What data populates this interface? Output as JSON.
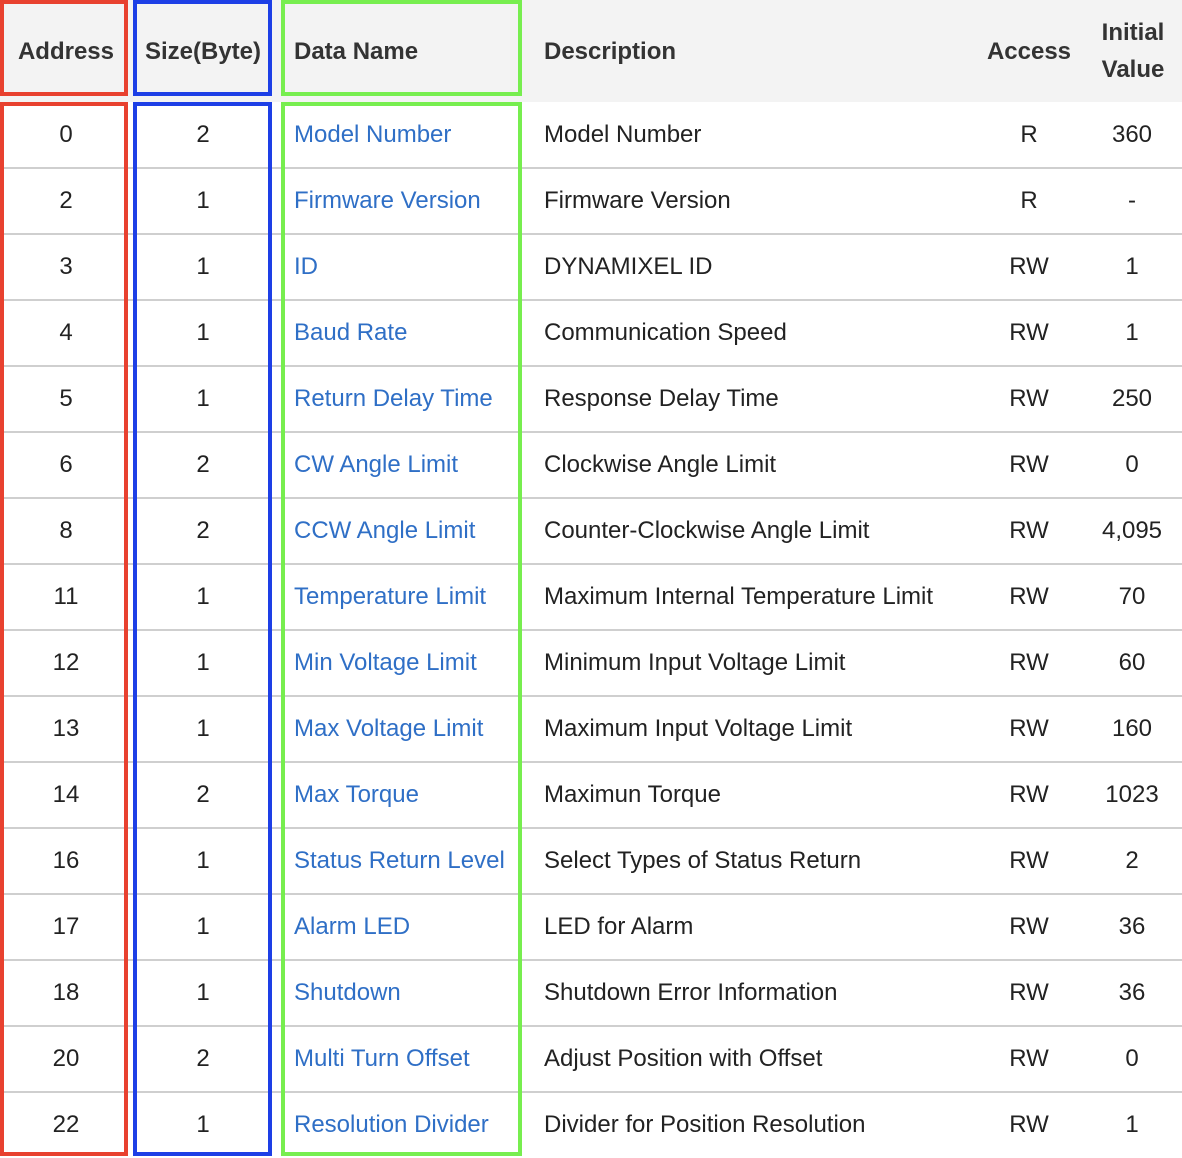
{
  "table": {
    "headers": [
      {
        "key": "address",
        "label": "Address"
      },
      {
        "key": "size",
        "label": "Size(Byte)"
      },
      {
        "key": "data_name",
        "label": "Data Name"
      },
      {
        "key": "description",
        "label": "Description"
      },
      {
        "key": "access",
        "label": "Access"
      },
      {
        "key": "initial_value",
        "label": "Initial Value"
      }
    ],
    "rows": [
      {
        "address": "0",
        "size": "2",
        "data_name": "Model Number",
        "description": "Model Number",
        "access": "R",
        "initial_value": "360"
      },
      {
        "address": "2",
        "size": "1",
        "data_name": "Firmware Version",
        "description": "Firmware Version",
        "access": "R",
        "initial_value": "-"
      },
      {
        "address": "3",
        "size": "1",
        "data_name": "ID",
        "description": "DYNAMIXEL ID",
        "access": "RW",
        "initial_value": "1"
      },
      {
        "address": "4",
        "size": "1",
        "data_name": "Baud Rate",
        "description": "Communication Speed",
        "access": "RW",
        "initial_value": "1"
      },
      {
        "address": "5",
        "size": "1",
        "data_name": "Return Delay Time",
        "description": "Response Delay Time",
        "access": "RW",
        "initial_value": "250"
      },
      {
        "address": "6",
        "size": "2",
        "data_name": "CW Angle Limit",
        "description": "Clockwise Angle Limit",
        "access": "RW",
        "initial_value": "0"
      },
      {
        "address": "8",
        "size": "2",
        "data_name": "CCW Angle Limit",
        "description": "Counter-Clockwise Angle Limit",
        "access": "RW",
        "initial_value": "4,095"
      },
      {
        "address": "11",
        "size": "1",
        "data_name": "Temperature Limit",
        "description": "Maximum Internal Temperature Limit",
        "access": "RW",
        "initial_value": "70"
      },
      {
        "address": "12",
        "size": "1",
        "data_name": "Min Voltage Limit",
        "description": "Minimum Input Voltage Limit",
        "access": "RW",
        "initial_value": "60"
      },
      {
        "address": "13",
        "size": "1",
        "data_name": "Max Voltage Limit",
        "description": "Maximum Input Voltage Limit",
        "access": "RW",
        "initial_value": "160"
      },
      {
        "address": "14",
        "size": "2",
        "data_name": "Max Torque",
        "description": "Maximun Torque",
        "access": "RW",
        "initial_value": "1023"
      },
      {
        "address": "16",
        "size": "1",
        "data_name": "Status Return Level",
        "description": "Select Types of Status Return",
        "access": "RW",
        "initial_value": "2"
      },
      {
        "address": "17",
        "size": "1",
        "data_name": "Alarm LED",
        "description": "LED for Alarm",
        "access": "RW",
        "initial_value": "36"
      },
      {
        "address": "18",
        "size": "1",
        "data_name": "Shutdown",
        "description": "Shutdown Error Information",
        "access": "RW",
        "initial_value": "36"
      },
      {
        "address": "20",
        "size": "2",
        "data_name": "Multi Turn Offset",
        "description": "Adjust Position with Offset",
        "access": "RW",
        "initial_value": "0"
      },
      {
        "address": "22",
        "size": "1",
        "data_name": "Resolution Divider",
        "description": "Divider for Position Resolution",
        "access": "RW",
        "initial_value": "1"
      }
    ]
  },
  "highlight_colors": {
    "address": "#e8412f",
    "size": "#1d3fe6",
    "data_name": "#77ee4f"
  },
  "link_color": "#2f6fc6"
}
